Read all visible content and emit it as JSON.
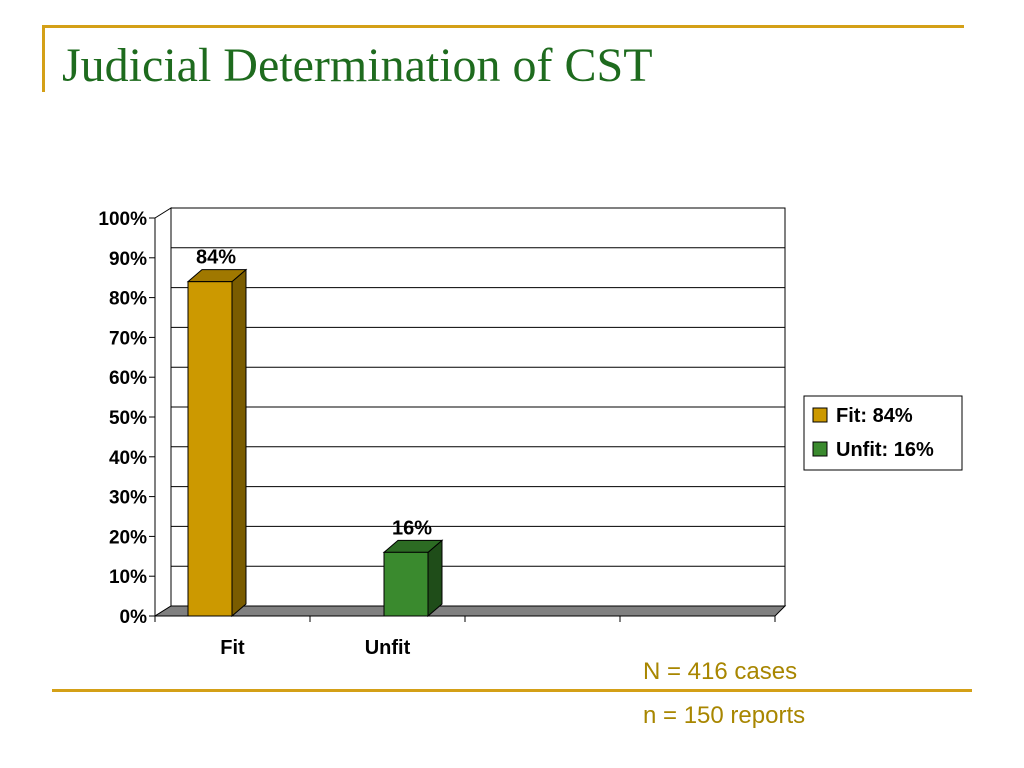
{
  "slide": {
    "title": "Judicial Determination of CST",
    "notes": [
      "N = 416 cases",
      "n = 150 reports"
    ]
  },
  "chart_data": {
    "type": "bar",
    "style": "3d-column",
    "categories": [
      "Fit",
      "Unfit"
    ],
    "series": [
      {
        "name": "Fit: 84%",
        "category": "Fit",
        "value": 84,
        "label": "84%",
        "color": "#cc9900",
        "side": "#7a5c00",
        "top": "#a07800"
      },
      {
        "name": "Unfit: 16%",
        "category": "Unfit",
        "value": 16,
        "label": "16%",
        "color": "#3a8a2e",
        "side": "#1f4d19",
        "top": "#2c6b23"
      }
    ],
    "ylim": [
      0,
      100
    ],
    "yticks": [
      "0%",
      "10%",
      "20%",
      "30%",
      "40%",
      "50%",
      "60%",
      "70%",
      "80%",
      "90%",
      "100%"
    ],
    "grid": true,
    "legend_position": "right",
    "legend": [
      "Fit: 84%",
      "Unfit: 16%"
    ]
  }
}
